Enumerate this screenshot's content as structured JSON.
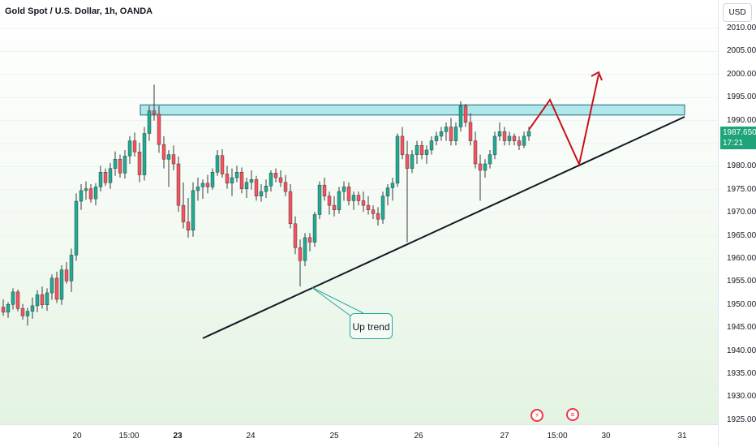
{
  "header": {
    "title": "Gold Spot / U.S. Dollar, 1h, OANDA"
  },
  "price_axis": {
    "unit": "USD",
    "ticks": [
      "2010.000",
      "2005.000",
      "2000.000",
      "1995.000",
      "1990.000",
      "1985.000",
      "1980.000",
      "1975.000",
      "1970.000",
      "1965.000",
      "1960.000",
      "1955.000",
      "1950.000",
      "1945.000",
      "1940.000",
      "1935.000",
      "1930.000",
      "1925.000"
    ],
    "last_price": "1987.650",
    "countdown": "17:21"
  },
  "time_axis": {
    "ticks": [
      {
        "label": "20",
        "bold": false
      },
      {
        "label": "15:00",
        "bold": false
      },
      {
        "label": "23",
        "bold": true
      },
      {
        "label": "24",
        "bold": false
      },
      {
        "label": "25",
        "bold": false
      },
      {
        "label": "26",
        "bold": false
      },
      {
        "label": "27",
        "bold": false
      },
      {
        "label": "15:00",
        "bold": false
      },
      {
        "label": "30",
        "bold": false
      },
      {
        "label": "31",
        "bold": false
      }
    ]
  },
  "annotation": {
    "label": "Up trend"
  },
  "events": [
    {
      "name": "flash-event-icon",
      "glyph": "⚡"
    },
    {
      "name": "us-flag-event-icon",
      "glyph": "≡"
    }
  ],
  "colors": {
    "up": "#22ab94",
    "down": "#f7525f",
    "wick": "#3a3a3a",
    "zone_fill": "#97e0e7",
    "zone_border": "#1a6b74",
    "trendline": "#131722",
    "projection": "#c8111b"
  },
  "chart_data": {
    "type": "candlestick",
    "symbol": "Gold Spot / U.S. Dollar",
    "interval": "1h",
    "unit": "USD",
    "ylim": [
      1923,
      2015
    ],
    "resistance_zone": [
      1991.2,
      1993.4
    ],
    "candles": [
      [
        1949.5,
        1951.2,
        1947.6,
        1948.4
      ],
      [
        1948.4,
        1950.6,
        1947.2,
        1950.1
      ],
      [
        1950.1,
        1953.6,
        1949.0,
        1952.8
      ],
      [
        1952.8,
        1953.3,
        1948.6,
        1949.2
      ],
      [
        1949.2,
        1950.2,
        1946.8,
        1947.6
      ],
      [
        1947.6,
        1949.4,
        1945.5,
        1948.6
      ],
      [
        1948.6,
        1951.6,
        1947.0,
        1949.8
      ],
      [
        1949.8,
        1953.2,
        1948.4,
        1952.2
      ],
      [
        1952.2,
        1954.0,
        1949.2,
        1950.0
      ],
      [
        1950.0,
        1953.6,
        1948.7,
        1952.6
      ],
      [
        1952.6,
        1956.6,
        1951.1,
        1955.8
      ],
      [
        1955.8,
        1957.2,
        1950.4,
        1951.2
      ],
      [
        1951.2,
        1958.6,
        1950.0,
        1957.6
      ],
      [
        1957.6,
        1959.3,
        1954.6,
        1955.2
      ],
      [
        1955.2,
        1962.2,
        1952.8,
        1960.8
      ],
      [
        1960.8,
        1974.2,
        1959.6,
        1972.5
      ],
      [
        1972.5,
        1976.2,
        1970.6,
        1974.8
      ],
      [
        1974.8,
        1976.8,
        1972.8,
        1975.2
      ],
      [
        1975.2,
        1976.2,
        1972.2,
        1973.0
      ],
      [
        1973.0,
        1976.4,
        1971.6,
        1975.6
      ],
      [
        1975.6,
        1980.2,
        1974.6,
        1978.8
      ],
      [
        1978.8,
        1979.6,
        1975.8,
        1976.5
      ],
      [
        1976.5,
        1980.8,
        1975.2,
        1979.6
      ],
      [
        1979.6,
        1983.3,
        1978.0,
        1981.6
      ],
      [
        1981.6,
        1982.6,
        1977.6,
        1978.6
      ],
      [
        1978.6,
        1983.6,
        1977.4,
        1982.3
      ],
      [
        1982.3,
        1986.6,
        1980.6,
        1985.6
      ],
      [
        1985.6,
        1987.4,
        1982.2,
        1983.2
      ],
      [
        1983.2,
        1985.2,
        1976.6,
        1978.2
      ],
      [
        1978.2,
        1988.6,
        1977.0,
        1987.2
      ],
      [
        1987.2,
        1993.2,
        1985.6,
        1992.1
      ],
      [
        1992.1,
        1997.8,
        1990.0,
        1991.4
      ],
      [
        1991.4,
        1993.2,
        1983.0,
        1984.8
      ],
      [
        1984.8,
        1986.6,
        1979.6,
        1981.6
      ],
      [
        1981.6,
        1983.6,
        1975.6,
        1982.6
      ],
      [
        1982.6,
        1984.6,
        1979.2,
        1980.6
      ],
      [
        1980.6,
        1982.2,
        1970.2,
        1971.6
      ],
      [
        1971.6,
        1976.6,
        1966.6,
        1968.0
      ],
      [
        1968.0,
        1973.2,
        1964.6,
        1966.2
      ],
      [
        1966.2,
        1976.6,
        1964.8,
        1974.8
      ],
      [
        1974.8,
        1977.6,
        1972.6,
        1975.6
      ],
      [
        1975.6,
        1977.2,
        1973.0,
        1976.4
      ],
      [
        1976.4,
        1978.2,
        1974.2,
        1975.6
      ],
      [
        1975.6,
        1979.6,
        1975.0,
        1978.8
      ],
      [
        1978.8,
        1983.6,
        1978.0,
        1982.4
      ],
      [
        1982.4,
        1983.8,
        1977.6,
        1978.4
      ],
      [
        1978.4,
        1980.2,
        1975.2,
        1976.4
      ],
      [
        1976.4,
        1979.6,
        1973.6,
        1977.6
      ],
      [
        1977.6,
        1980.2,
        1976.6,
        1978.8
      ],
      [
        1978.8,
        1979.8,
        1974.2,
        1975.2
      ],
      [
        1975.2,
        1977.6,
        1973.2,
        1976.6
      ],
      [
        1976.6,
        1979.2,
        1975.0,
        1977.2
      ],
      [
        1977.2,
        1978.0,
        1972.6,
        1973.6
      ],
      [
        1973.6,
        1976.2,
        1972.4,
        1974.6
      ],
      [
        1974.6,
        1977.2,
        1973.2,
        1975.8
      ],
      [
        1975.8,
        1979.2,
        1974.6,
        1978.6
      ],
      [
        1978.6,
        1979.6,
        1976.6,
        1977.6
      ],
      [
        1977.6,
        1979.2,
        1975.6,
        1976.6
      ],
      [
        1976.6,
        1978.2,
        1973.6,
        1974.6
      ],
      [
        1974.6,
        1976.2,
        1966.6,
        1967.6
      ],
      [
        1967.6,
        1969.2,
        1961.0,
        1962.4
      ],
      [
        1962.4,
        1964.2,
        1954.0,
        1959.6
      ],
      [
        1959.6,
        1965.6,
        1958.4,
        1964.6
      ],
      [
        1964.6,
        1965.6,
        1961.6,
        1963.6
      ],
      [
        1963.6,
        1970.2,
        1962.6,
        1969.6
      ],
      [
        1969.6,
        1976.8,
        1968.6,
        1976.0
      ],
      [
        1976.0,
        1977.6,
        1972.6,
        1973.6
      ],
      [
        1973.6,
        1974.6,
        1969.6,
        1971.6
      ],
      [
        1971.6,
        1973.6,
        1969.2,
        1970.6
      ],
      [
        1970.6,
        1975.6,
        1969.8,
        1974.6
      ],
      [
        1974.6,
        1976.8,
        1972.6,
        1975.6
      ],
      [
        1975.6,
        1976.6,
        1971.6,
        1972.6
      ],
      [
        1972.6,
        1974.6,
        1970.6,
        1973.8
      ],
      [
        1973.8,
        1974.6,
        1971.6,
        1972.6
      ],
      [
        1972.6,
        1974.6,
        1970.2,
        1971.6
      ],
      [
        1971.6,
        1973.6,
        1969.6,
        1970.6
      ],
      [
        1970.6,
        1971.6,
        1968.6,
        1969.8
      ],
      [
        1969.8,
        1971.2,
        1967.2,
        1968.6
      ],
      [
        1968.6,
        1974.6,
        1967.6,
        1973.6
      ],
      [
        1973.6,
        1976.2,
        1971.6,
        1975.4
      ],
      [
        1975.4,
        1977.6,
        1972.6,
        1976.4
      ],
      [
        1976.4,
        1987.2,
        1975.6,
        1986.6
      ],
      [
        1986.6,
        1988.6,
        1981.6,
        1982.6
      ],
      [
        1982.6,
        1985.6,
        1963.6,
        1979.6
      ],
      [
        1979.6,
        1983.6,
        1978.6,
        1982.6
      ],
      [
        1982.6,
        1985.6,
        1980.6,
        1984.6
      ],
      [
        1984.6,
        1985.6,
        1981.6,
        1982.6
      ],
      [
        1982.6,
        1984.6,
        1980.6,
        1983.6
      ],
      [
        1983.6,
        1986.6,
        1982.6,
        1985.6
      ],
      [
        1985.6,
        1987.6,
        1984.6,
        1986.6
      ],
      [
        1986.6,
        1988.6,
        1985.6,
        1987.6
      ],
      [
        1987.6,
        1989.6,
        1985.6,
        1988.6
      ],
      [
        1988.6,
        1990.6,
        1984.6,
        1985.6
      ],
      [
        1985.6,
        1989.6,
        1984.6,
        1988.6
      ],
      [
        1988.6,
        1994.2,
        1987.6,
        1993.2
      ],
      [
        1993.2,
        1993.6,
        1988.6,
        1989.6
      ],
      [
        1989.6,
        1991.6,
        1984.6,
        1985.6
      ],
      [
        1985.6,
        1987.6,
        1979.6,
        1980.6
      ],
      [
        1980.6,
        1982.6,
        1972.6,
        1979.2
      ],
      [
        1979.2,
        1981.6,
        1977.6,
        1980.6
      ],
      [
        1980.6,
        1983.6,
        1979.6,
        1982.6
      ],
      [
        1982.6,
        1987.6,
        1981.6,
        1986.6
      ],
      [
        1986.6,
        1989.6,
        1985.6,
        1987.6
      ],
      [
        1987.6,
        1988.6,
        1984.6,
        1985.6
      ],
      [
        1985.6,
        1987.6,
        1984.6,
        1986.6
      ],
      [
        1986.6,
        1987.2,
        1984.6,
        1985.6
      ],
      [
        1985.6,
        1986.6,
        1983.6,
        1984.6
      ],
      [
        1984.6,
        1987.6,
        1984.0,
        1986.6
      ],
      [
        1986.6,
        1988.6,
        1985.6,
        1987.65
      ]
    ],
    "trendline": {
      "from": [
        "Jun 23 night",
        1943.5
      ],
      "to": [
        "Jun 31",
        1991.0
      ]
    },
    "projection_path": [
      [
        1988.0,
        ""
      ],
      [
        1994.5,
        ""
      ],
      [
        1980.5,
        ""
      ],
      [
        2000.0,
        ""
      ]
    ],
    "xlabel": "",
    "ylabel": ""
  }
}
